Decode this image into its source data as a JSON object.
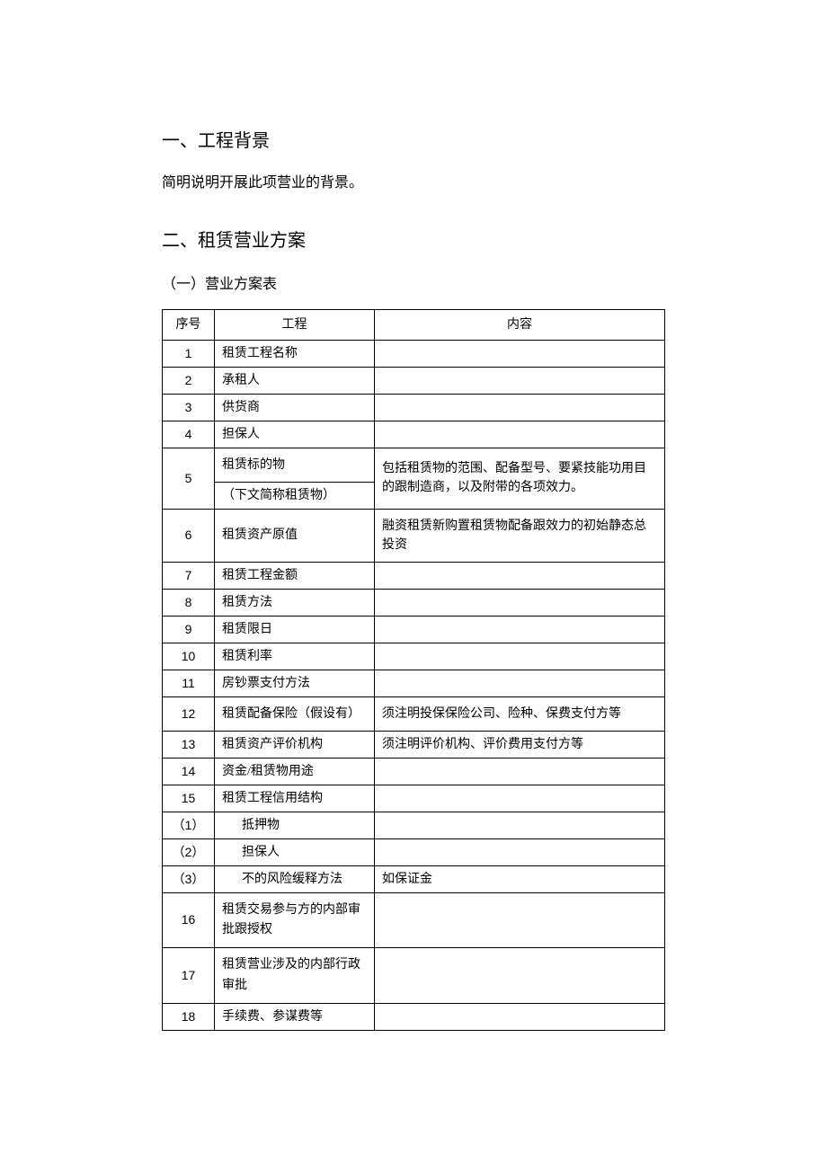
{
  "section1": {
    "heading": "一、工程背景",
    "body": "简明说明开展此项营业的背景。"
  },
  "section2": {
    "heading": "二、租赁营业方案",
    "sub": "（一）营业方案表"
  },
  "table": {
    "headers": {
      "seq": "序号",
      "item": "工程",
      "content": "内容"
    },
    "rows": {
      "r1": {
        "seq": "1",
        "item": "租赁工程名称",
        "content": ""
      },
      "r2": {
        "seq": "2",
        "item": "承租人",
        "content": ""
      },
      "r3": {
        "seq": "3",
        "item": "供货商",
        "content": ""
      },
      "r4": {
        "seq": "4",
        "item": "担保人",
        "content": ""
      },
      "r5a": {
        "seq": "5",
        "item": "租赁标的物"
      },
      "r5b": {
        "item": "（下文简称租赁物）"
      },
      "r5c": {
        "content": "包括租赁物的范围、配备型号、要紧技能功用目的跟制造商，以及附带的各项效力。"
      },
      "r6": {
        "seq": "6",
        "item": "租赁资产原值",
        "content": "融资租赁新购置租赁物配备跟效力的初始静态总投资"
      },
      "r7": {
        "seq": "7",
        "item": "租赁工程金额",
        "content": ""
      },
      "r8": {
        "seq": "8",
        "item": "租赁方法",
        "content": ""
      },
      "r9": {
        "seq": "9",
        "item": "租赁限日",
        "content": ""
      },
      "r10": {
        "seq": "10",
        "item": "租赁利率",
        "content": ""
      },
      "r11": {
        "seq": "11",
        "item": "房钞票支付方法",
        "content": ""
      },
      "r12": {
        "seq": "12",
        "item": "租赁配备保险（假设有）",
        "content": "须注明投保保险公司、险种、保费支付方等"
      },
      "r13": {
        "seq": "13",
        "item": "租赁资产评价机构",
        "content": "须注明评价机构、评价费用支付方等"
      },
      "r14": {
        "seq": "14",
        "item": "资金/租赁物用途",
        "content": ""
      },
      "r15": {
        "seq": "15",
        "item": "租赁工程信用结构",
        "content": ""
      },
      "s1": {
        "seq": "（1）",
        "item": "抵押物",
        "content": ""
      },
      "s2": {
        "seq": "（2）",
        "item": "担保人",
        "content": ""
      },
      "s3": {
        "seq": "（3）",
        "item": "不的风险缓释方法",
        "content": "如保证金"
      },
      "r16": {
        "seq": "16",
        "item": "租赁交易参与方的内部审批跟授权",
        "content": ""
      },
      "r17": {
        "seq": "17",
        "item": "租赁营业涉及的内部行政审批",
        "content": ""
      },
      "r18": {
        "seq": "18",
        "item": "手续费、参谋费等",
        "content": ""
      }
    }
  }
}
